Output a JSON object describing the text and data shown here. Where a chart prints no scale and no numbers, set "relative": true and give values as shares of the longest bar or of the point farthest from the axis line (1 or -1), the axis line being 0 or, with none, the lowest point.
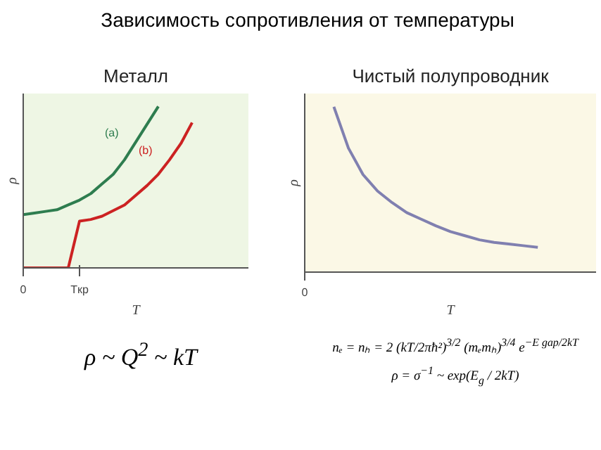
{
  "chart_data": [
    {
      "type": "line",
      "title": "Металл",
      "xlabel": "T",
      "ylabel": "ρ",
      "relative": true,
      "tick_labels": "x",
      "grid": false,
      "categories": [
        "0",
        null,
        null,
        null,
        null,
        "Tкр",
        null,
        null,
        null,
        null,
        null,
        null,
        null,
        null,
        null,
        null,
        null,
        null,
        null,
        null,
        null
      ],
      "annotations": [
        "Зависимость сопротивления от температуры",
        "ρ ~ Q$^{2}$ ~ kT"
      ],
      "series": [
        {
          "name": "(a)",
          "color": "#2e7d4f",
          "values": [
            0.33,
            0.34,
            0.35,
            0.36,
            0.39,
            0.42,
            0.46,
            0.52,
            0.58,
            0.67,
            0.78,
            0.89,
            1.0,
            null,
            null,
            null,
            null,
            null,
            null,
            null,
            null
          ]
        },
        {
          "name": "(b)",
          "color": "#cc2222",
          "values": [
            0,
            0,
            0,
            0,
            0,
            0.29,
            0.3,
            0.32,
            0.355,
            0.39,
            0.45,
            0.51,
            0.58,
            0.67,
            0.77,
            0.9,
            null,
            null,
            null,
            null,
            null
          ]
        }
      ]
    },
    {
      "type": "line",
      "title": "Чистый полупроводник",
      "xlabel": "T",
      "ylabel": "ρ",
      "relative": true,
      "tick_labels": "x",
      "grid": false,
      "categories": [
        null,
        null,
        null,
        null,
        null,
        null,
        null,
        null,
        null,
        null,
        null,
        null,
        null,
        null,
        null,
        null,
        null,
        null,
        null,
        null,
        null
      ],
      "annotations": [
        "0",
        "nₑ = nₕ = 2 (kT/2πħ²)$^{3/2}$ (mₑmₕ)$^{3/4}$ e$^{−E gap/2kT}$",
        "ρ = σ$^{−1}$ ~ exp(E$_{g}$ / 2kT)"
      ],
      "series": [
        {
          "color": "#8080b0",
          "values": [
            null,
            null,
            1.0,
            0.75,
            0.59,
            0.49,
            0.42,
            0.36,
            0.32,
            0.28,
            0.245,
            0.22,
            0.195,
            0.18,
            0.17,
            0.16,
            0.15,
            null,
            null,
            null,
            null
          ]
        }
      ]
    }
  ]
}
